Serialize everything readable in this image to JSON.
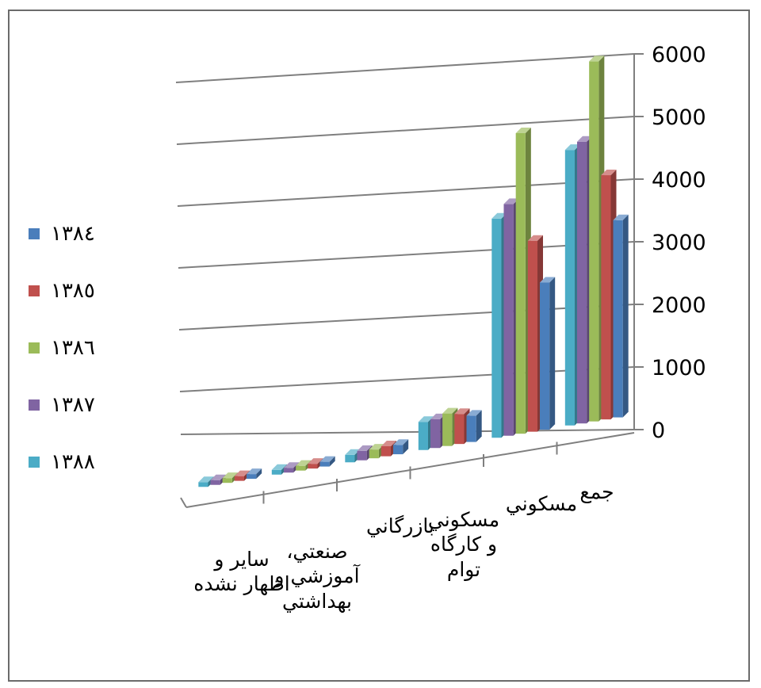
{
  "chart_data": {
    "type": "bar",
    "title": "",
    "categories": [
      "ساير و اظهار نشده",
      "صنعتي، آموزشي و بهداشتي",
      "بازرگاني",
      "مسكوني و كارگاه توام",
      "مسكوني",
      "جمع"
    ],
    "series": [
      {
        "name": "١٣٨٤",
        "color": "#4a7ebb",
        "values": [
          5,
          8,
          150,
          420,
          2350,
          3150
        ]
      },
      {
        "name": "١٣٨٥",
        "color": "#c0504d",
        "values": [
          10,
          12,
          160,
          480,
          3050,
          3900
        ]
      },
      {
        "name": "١٣٨٦",
        "color": "#9bbb59",
        "values": [
          10,
          12,
          140,
          520,
          4800,
          5750
        ]
      },
      {
        "name": "١٣٨٧",
        "color": "#8064a2",
        "values": [
          5,
          8,
          150,
          460,
          3700,
          4500
        ]
      },
      {
        "name": "١٣٨٨",
        "color": "#4bacc6",
        "values": [
          2,
          4,
          120,
          450,
          3500,
          4400
        ]
      }
    ],
    "ylim": [
      0,
      6000
    ],
    "yticks": [
      0,
      1000,
      2000,
      3000,
      4000,
      5000,
      6000
    ],
    "grid": true,
    "legend_position": "left"
  }
}
